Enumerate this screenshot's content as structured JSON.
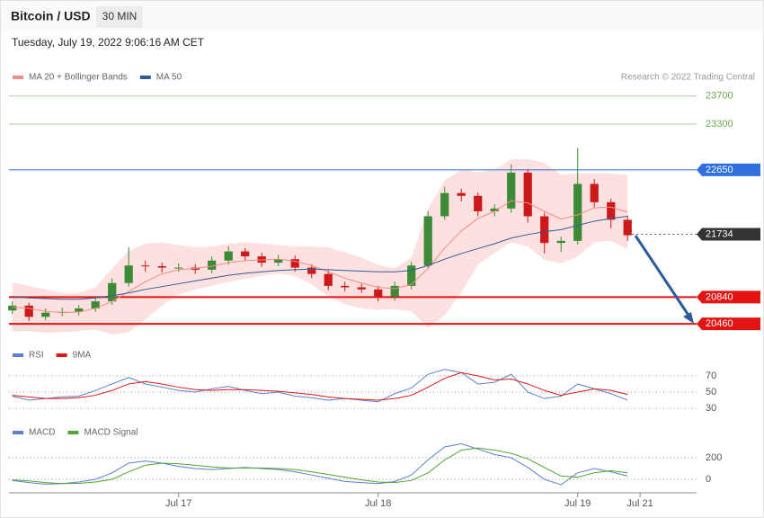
{
  "header": {
    "title": "Bitcoin / USD",
    "timeframe": "30 MIN",
    "datetime": "Tuesday, July 19, 2022 9:06:16 AM CET"
  },
  "chart_data": [
    {
      "type": "candlestick",
      "source": "Research © 2022 Trading Central",
      "x": [
        -20,
        -18,
        -16,
        -14,
        -12,
        -10,
        -8,
        -6,
        -4,
        -2,
        0,
        2,
        4,
        6,
        8,
        10,
        12,
        14,
        16,
        18,
        20,
        22,
        24,
        26,
        28,
        30,
        32,
        34,
        36,
        38,
        40,
        42,
        44,
        46,
        48,
        50,
        52,
        54
      ],
      "xlim": [
        -20.4,
        62.3
      ],
      "ylim": [
        20270,
        23850
      ],
      "up_color": "#3d8b37",
      "down_color": "#cc1a1a",
      "open": [
        20650,
        20720,
        20560,
        20620,
        20630,
        20680,
        20780,
        21040,
        21290,
        21280,
        21260,
        21260,
        21230,
        21360,
        21490,
        21420,
        21330,
        21380,
        21260,
        21170,
        21000,
        20980,
        20950,
        20850,
        21000,
        21290,
        21990,
        22320,
        22280,
        22060,
        22100,
        22610,
        21990,
        21610,
        21640,
        22450,
        22190,
        21940
      ],
      "high": [
        20780,
        20760,
        20680,
        20690,
        20730,
        20830,
        21110,
        21550,
        21360,
        21330,
        21320,
        21310,
        21420,
        21560,
        21540,
        21470,
        21440,
        21430,
        21310,
        21220,
        21060,
        21030,
        21000,
        21060,
        21340,
        22060,
        22410,
        22380,
        22330,
        22160,
        22730,
        22660,
        22040,
        21700,
        22960,
        22520,
        22240,
        22000
      ],
      "low": [
        20600,
        20500,
        20510,
        20570,
        20580,
        20630,
        20730,
        20990,
        21200,
        21190,
        21200,
        21170,
        21180,
        21300,
        21360,
        21270,
        21280,
        21200,
        21110,
        20940,
        20920,
        20900,
        20780,
        20790,
        20950,
        21240,
        21940,
        22200,
        21990,
        21990,
        22040,
        21900,
        21460,
        21480,
        21590,
        22120,
        21820,
        21640
      ],
      "close": [
        20720,
        20560,
        20620,
        20630,
        20680,
        20780,
        21040,
        21290,
        21280,
        21260,
        21260,
        21230,
        21360,
        21490,
        21420,
        21330,
        21380,
        21260,
        21170,
        21000,
        20980,
        20950,
        20850,
        21000,
        21290,
        21990,
        22320,
        22280,
        22060,
        22100,
        22610,
        21990,
        21610,
        21640,
        22450,
        22190,
        21940,
        21720
      ],
      "series": [
        {
          "name": "MA 20 + Bollinger Bands",
          "color": "#f28b82",
          "band_color": "#fde0e0",
          "values": [
            20700,
            20680,
            20640,
            20620,
            20630,
            20680,
            20780,
            20920,
            21060,
            21170,
            21230,
            21250,
            21280,
            21330,
            21360,
            21370,
            21380,
            21350,
            21290,
            21200,
            21110,
            21040,
            20980,
            20960,
            21020,
            21250,
            21540,
            21780,
            21960,
            22060,
            22210,
            22180,
            22060,
            21950,
            22010,
            22110,
            22120,
            22050
          ],
          "upper": [
            21050,
            21000,
            20950,
            20900,
            20900,
            20980,
            21250,
            21500,
            21600,
            21620,
            21580,
            21550,
            21560,
            21600,
            21620,
            21600,
            21580,
            21560,
            21560,
            21550,
            21480,
            21400,
            21300,
            21250,
            21400,
            22100,
            22500,
            22650,
            22620,
            22650,
            22800,
            22800,
            22750,
            22580,
            22600,
            22600,
            22600,
            22580
          ],
          "lower": [
            20350,
            20360,
            20330,
            20340,
            20360,
            20380,
            20310,
            20340,
            20520,
            20720,
            20880,
            20950,
            21000,
            21060,
            21100,
            21140,
            21180,
            21140,
            21020,
            20850,
            20740,
            20680,
            20660,
            20670,
            20640,
            20400,
            20580,
            20910,
            21300,
            21470,
            21620,
            21560,
            21370,
            21320,
            21420,
            21620,
            21640,
            21520
          ]
        },
        {
          "name": "MA 50",
          "color": "#2e5b9a",
          "values": [
            20850,
            20830,
            20820,
            20810,
            20810,
            20830,
            20860,
            20900,
            20950,
            20990,
            21030,
            21070,
            21110,
            21150,
            21180,
            21200,
            21220,
            21230,
            21240,
            21230,
            21220,
            21210,
            21200,
            21200,
            21220,
            21290,
            21380,
            21460,
            21530,
            21600,
            21680,
            21730,
            21770,
            21800,
            21860,
            21920,
            21960,
            21990
          ]
        }
      ],
      "levels": [
        {
          "value": 23700,
          "color": "#6aa84f",
          "boxed": false
        },
        {
          "value": 23300,
          "color": "#6aa84f",
          "boxed": false
        },
        {
          "value": 22650,
          "color": "#2f6fe0",
          "boxed": true
        },
        {
          "value": 21734,
          "color": "#333333",
          "boxed": true,
          "dotted": true
        },
        {
          "value": 20840,
          "color": "#e31414",
          "boxed": true
        },
        {
          "value": 20460,
          "color": "#e31414",
          "boxed": true
        }
      ]
    },
    {
      "type": "line",
      "x": [
        -20,
        -18,
        -16,
        -14,
        -12,
        -10,
        -8,
        -6,
        -4,
        -2,
        0,
        2,
        4,
        6,
        8,
        10,
        12,
        14,
        16,
        18,
        20,
        22,
        24,
        26,
        28,
        30,
        32,
        34,
        36,
        38,
        40,
        42,
        44,
        46,
        48,
        50,
        52,
        54
      ],
      "xlim": [
        -20.4,
        62.3
      ],
      "ylim": [
        23.3,
        84.4
      ],
      "yticks": [
        70,
        50,
        30
      ],
      "grid": true,
      "series": [
        {
          "name": "RSI",
          "color": "#5b7fd6",
          "values": [
            45,
            40,
            42,
            44,
            45,
            52,
            60,
            68,
            60,
            56,
            52,
            50,
            54,
            57,
            52,
            48,
            50,
            45,
            43,
            40,
            42,
            40,
            38,
            48,
            55,
            72,
            78,
            74,
            60,
            62,
            72,
            50,
            42,
            45,
            60,
            54,
            48,
            40
          ]
        },
        {
          "name": "9MA",
          "color": "#e31414",
          "values": [
            46,
            44,
            42,
            42,
            43,
            46,
            52,
            60,
            63,
            60,
            56,
            53,
            52,
            53,
            53,
            52,
            51,
            49,
            47,
            44,
            42,
            41,
            40,
            42,
            46,
            56,
            67,
            74,
            70,
            65,
            66,
            60,
            52,
            46,
            50,
            54,
            52,
            47
          ]
        }
      ]
    },
    {
      "type": "line",
      "x": [
        -20,
        -18,
        -16,
        -14,
        -12,
        -10,
        -8,
        -6,
        -4,
        -2,
        0,
        2,
        4,
        6,
        8,
        10,
        12,
        14,
        16,
        18,
        20,
        22,
        24,
        26,
        28,
        30,
        32,
        34,
        36,
        38,
        40,
        42,
        44,
        46,
        48,
        50,
        52,
        54
      ],
      "xlim": [
        -20.4,
        62.3
      ],
      "ylim": [
        -100,
        358
      ],
      "yticks": [
        200,
        0
      ],
      "grid": true,
      "xticks": [
        {
          "value": 0,
          "label": "Jul 17"
        },
        {
          "value": 24,
          "label": "Jul 18"
        },
        {
          "value": 48,
          "label": "Jul 19"
        },
        {
          "value": 55.5,
          "label": "Jul 21"
        }
      ],
      "series": [
        {
          "name": "MACD",
          "color": "#5b7fd6",
          "values": [
            -10,
            -30,
            -45,
            -40,
            -25,
            0,
            60,
            150,
            170,
            150,
            120,
            100,
            90,
            100,
            110,
            100,
            90,
            70,
            40,
            10,
            -20,
            -30,
            -40,
            -20,
            40,
            180,
            300,
            330,
            280,
            230,
            200,
            110,
            0,
            -50,
            60,
            100,
            70,
            30
          ]
        },
        {
          "name": "MACD Signal",
          "color": "#4ea72e",
          "values": [
            -5,
            -15,
            -30,
            -40,
            -38,
            -25,
            0,
            70,
            130,
            150,
            145,
            130,
            115,
            105,
            105,
            105,
            100,
            90,
            70,
            45,
            20,
            -5,
            -25,
            -30,
            -10,
            60,
            180,
            270,
            290,
            270,
            240,
            190,
            110,
            30,
            20,
            60,
            80,
            60
          ]
        }
      ]
    }
  ]
}
